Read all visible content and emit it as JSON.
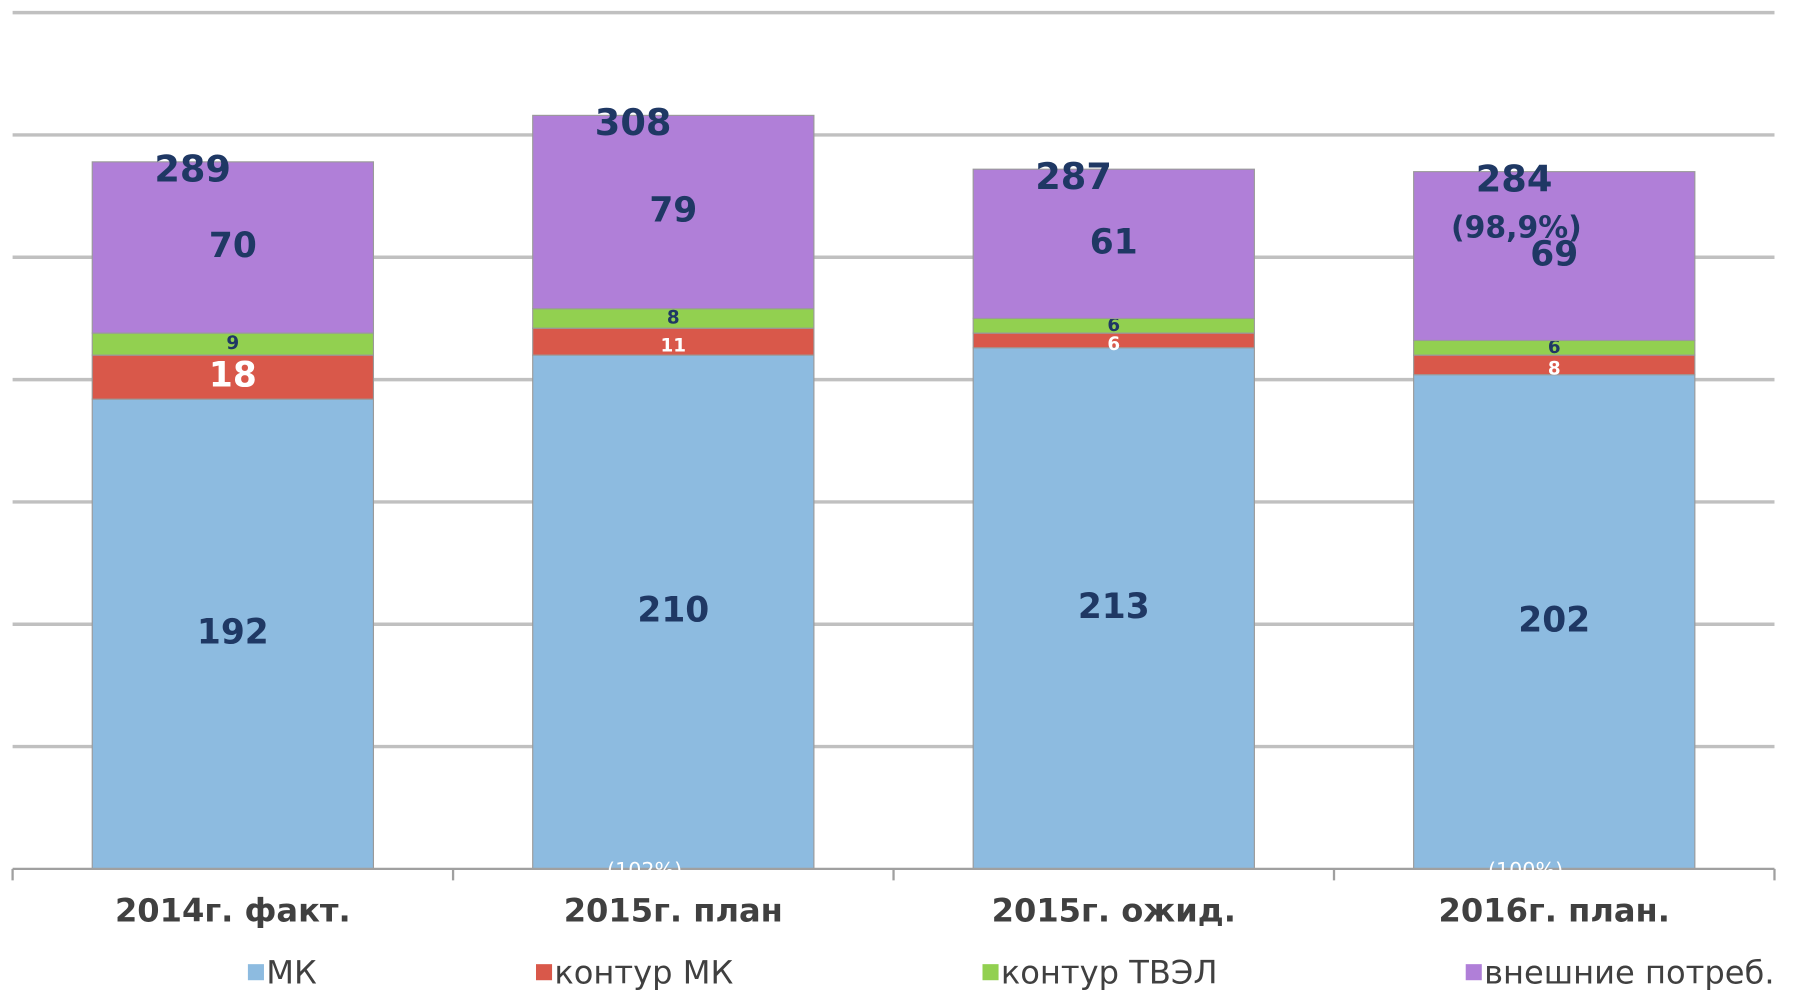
{
  "chart_data": {
    "type": "stacked_bar",
    "categories": [
      "2014г. факт.",
      "2015г. план",
      "2015г. ожид.",
      "2016г. план."
    ],
    "series": [
      {
        "name": "МК",
        "color": "#8dbbe0",
        "values": [
          192,
          210,
          213,
          202
        ]
      },
      {
        "name": "контур МК",
        "color": "#d9584a",
        "values": [
          18,
          11,
          6,
          8
        ]
      },
      {
        "name": "контур ТВЭЛ",
        "color": "#92d050",
        "values": [
          9,
          8,
          6,
          6
        ]
      },
      {
        "name": "внешние потреб.",
        "color": "#b07fd8",
        "values": [
          70,
          79,
          61,
          69
        ]
      }
    ],
    "totals": [
      289,
      308,
      287,
      284
    ],
    "annotations": [
      {
        "text": "(102%)",
        "category": 1
      },
      {
        "text": "(98,9%)",
        "category": 3
      },
      {
        "text": "(100%)",
        "category": 3
      }
    ],
    "ylim": [
      0,
      350
    ],
    "yticks": [
      0,
      50,
      100,
      150,
      200,
      250,
      300,
      350
    ],
    "grid": true
  }
}
